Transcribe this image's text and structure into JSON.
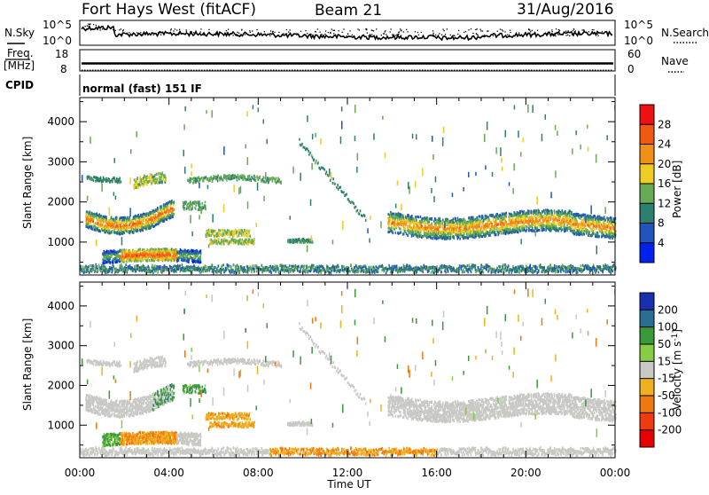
{
  "header": {
    "station": "Fort Hays West (fitACF)",
    "beam": "Beam 21",
    "date": "31/Aug/2016"
  },
  "params_panel": {
    "left_labels": [
      "N.Sky",
      "Freq.",
      "[MHz]",
      "CPID"
    ],
    "right_labels": [
      "N.Search",
      "Nave"
    ],
    "nsky_ticks": [
      "10^5",
      "10^0"
    ],
    "freq_ticks": [
      "18",
      "8"
    ],
    "nave_ticks": [
      "60",
      "0"
    ],
    "cpid_text": "normal (fast) 151 IF"
  },
  "chart_data": [
    {
      "type": "heatmap",
      "title": "",
      "xlabel": "Time UT",
      "ylabel": "Slant Range [km]",
      "x_ticks": [
        "00:00",
        "04:00",
        "08:00",
        "12:00",
        "16:00",
        "20:00",
        "00:00"
      ],
      "xlim_hours": [
        0,
        24
      ],
      "ylim_km": [
        180,
        4600
      ],
      "y_ticks": [
        1000,
        2000,
        3000,
        4000
      ],
      "colorbar": {
        "label": "Power [dB]",
        "ticks": [
          4,
          8,
          12,
          16,
          20,
          24,
          28
        ],
        "range": [
          0,
          32
        ],
        "colors": [
          "#0022ee",
          "#2255bb",
          "#2e7f6f",
          "#66aa55",
          "#eecc22",
          "#f09018",
          "#f05a10",
          "#ee1111"
        ]
      },
      "echo_regions_km": [
        {
          "t_start": 0.2,
          "t_end": 4.2,
          "r_min": 1250,
          "r_max": 1900,
          "level": "strong"
        },
        {
          "t_start": 13.8,
          "t_end": 24.0,
          "r_min": 1050,
          "r_max": 1800,
          "level": "strong"
        },
        {
          "t_start": 1.0,
          "t_end": 5.5,
          "r_min": 450,
          "r_max": 850,
          "level": "strong"
        },
        {
          "t_start": 0.2,
          "t_end": 9.0,
          "r_min": 2300,
          "r_max": 2700,
          "level": "weak"
        },
        {
          "t_start": 0.0,
          "t_end": 24.0,
          "r_min": 200,
          "r_max": 400,
          "level": "weak"
        },
        {
          "t_start": 9.3,
          "t_end": 10.5,
          "r_min": 950,
          "r_max": 1100,
          "level": "weak"
        }
      ]
    },
    {
      "type": "heatmap",
      "title": "",
      "xlabel": "Time UT",
      "ylabel": "Slant Range [km]",
      "x_ticks": [
        "00:00",
        "04:00",
        "08:00",
        "12:00",
        "16:00",
        "20:00",
        "00:00"
      ],
      "xlim_hours": [
        0,
        24
      ],
      "ylim_km": [
        180,
        4600
      ],
      "y_ticks": [
        1000,
        2000,
        3000,
        4000
      ],
      "colorbar": {
        "label": "Velocity [m s^-1]",
        "ticks": [
          200,
          100,
          50,
          15,
          -15,
          -50,
          -100,
          -200
        ],
        "colors": [
          "#1a2fb0",
          "#2a6f8f",
          "#3a9a3a",
          "#88cc44",
          "#c8c8c4",
          "#f0b020",
          "#f07810",
          "#f03a10",
          "#e80000"
        ]
      }
    }
  ]
}
